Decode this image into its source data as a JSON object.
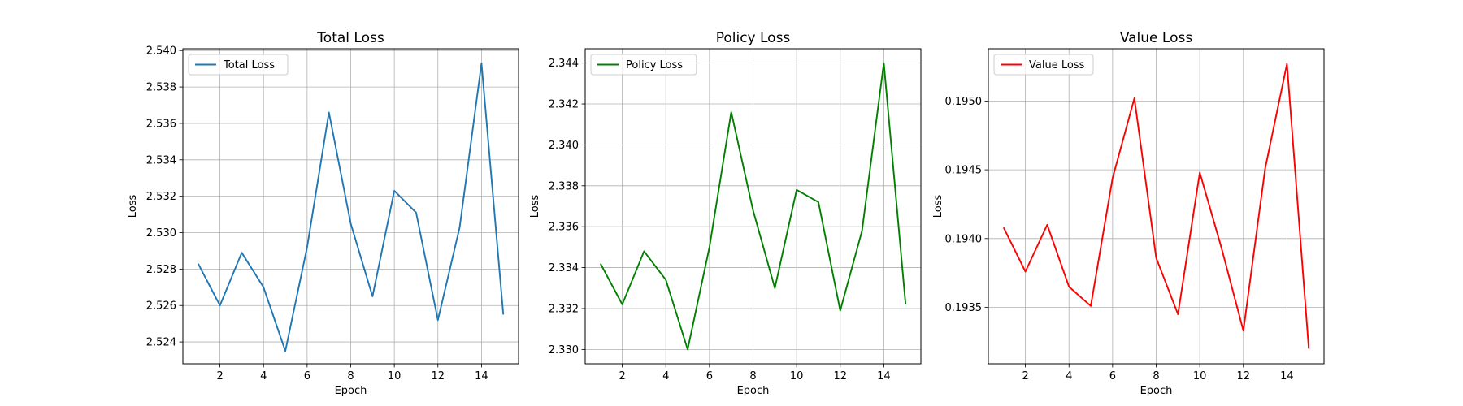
{
  "chart_data": [
    {
      "type": "line",
      "title": "Total Loss",
      "xlabel": "Epoch",
      "ylabel": "Loss",
      "x": [
        1,
        2,
        3,
        4,
        5,
        6,
        7,
        8,
        9,
        10,
        11,
        12,
        13,
        14,
        15
      ],
      "series": [
        {
          "name": "Total Loss",
          "color": "#1f77b4",
          "values": [
            2.5283,
            2.526,
            2.5289,
            2.527,
            2.5235,
            2.5292,
            2.5366,
            2.5305,
            2.5265,
            2.5323,
            2.5311,
            2.5252,
            2.5303,
            2.5393,
            2.5255
          ]
        }
      ],
      "xlim": [
        0.3,
        15.7
      ],
      "ylim": [
        2.5228,
        2.5401
      ],
      "xticks": [
        2,
        4,
        6,
        8,
        10,
        12,
        14
      ],
      "yticks": [
        2.524,
        2.526,
        2.528,
        2.53,
        2.532,
        2.534,
        2.536,
        2.538,
        2.54
      ],
      "ytick_labels": [
        "2.524",
        "2.526",
        "2.528",
        "2.530",
        "2.532",
        "2.534",
        "2.536",
        "2.538",
        "2.540"
      ],
      "grid": true,
      "legend_position": "top-left"
    },
    {
      "type": "line",
      "title": "Policy Loss",
      "xlabel": "Epoch",
      "ylabel": "Loss",
      "x": [
        1,
        2,
        3,
        4,
        5,
        6,
        7,
        8,
        9,
        10,
        11,
        12,
        13,
        14,
        15
      ],
      "series": [
        {
          "name": "Policy Loss",
          "color": "#008000",
          "values": [
            2.3342,
            2.3322,
            2.3348,
            2.3334,
            2.33,
            2.335,
            2.3416,
            2.3368,
            2.333,
            2.3378,
            2.3372,
            2.3319,
            2.3358,
            2.344,
            2.3322
          ]
        }
      ],
      "xlim": [
        0.3,
        15.7
      ],
      "ylim": [
        2.3293,
        2.3447
      ],
      "xticks": [
        2,
        4,
        6,
        8,
        10,
        12,
        14
      ],
      "yticks": [
        2.33,
        2.332,
        2.334,
        2.336,
        2.338,
        2.34,
        2.342,
        2.344
      ],
      "ytick_labels": [
        "2.330",
        "2.332",
        "2.334",
        "2.336",
        "2.338",
        "2.340",
        "2.342",
        "2.344"
      ],
      "grid": true,
      "legend_position": "top-left"
    },
    {
      "type": "line",
      "title": "Value Loss",
      "xlabel": "Epoch",
      "ylabel": "Loss",
      "x": [
        1,
        2,
        3,
        4,
        5,
        6,
        7,
        8,
        9,
        10,
        11,
        12,
        13,
        14,
        15
      ],
      "series": [
        {
          "name": "Value Loss",
          "color": "#ff0000",
          "values": [
            0.19408,
            0.19376,
            0.1941,
            0.19365,
            0.19351,
            0.19444,
            0.19502,
            0.19386,
            0.19345,
            0.19448,
            0.19393,
            0.19333,
            0.19451,
            0.19527,
            0.1932
          ]
        }
      ],
      "xlim": [
        0.3,
        15.7
      ],
      "ylim": [
        0.19309,
        0.19538
      ],
      "xticks": [
        2,
        4,
        6,
        8,
        10,
        12,
        14
      ],
      "yticks": [
        0.1935,
        0.194,
        0.1945,
        0.195
      ],
      "ytick_labels": [
        "0.1935",
        "0.1940",
        "0.1945",
        "0.1950"
      ],
      "grid": true,
      "legend_position": "top-left"
    }
  ]
}
